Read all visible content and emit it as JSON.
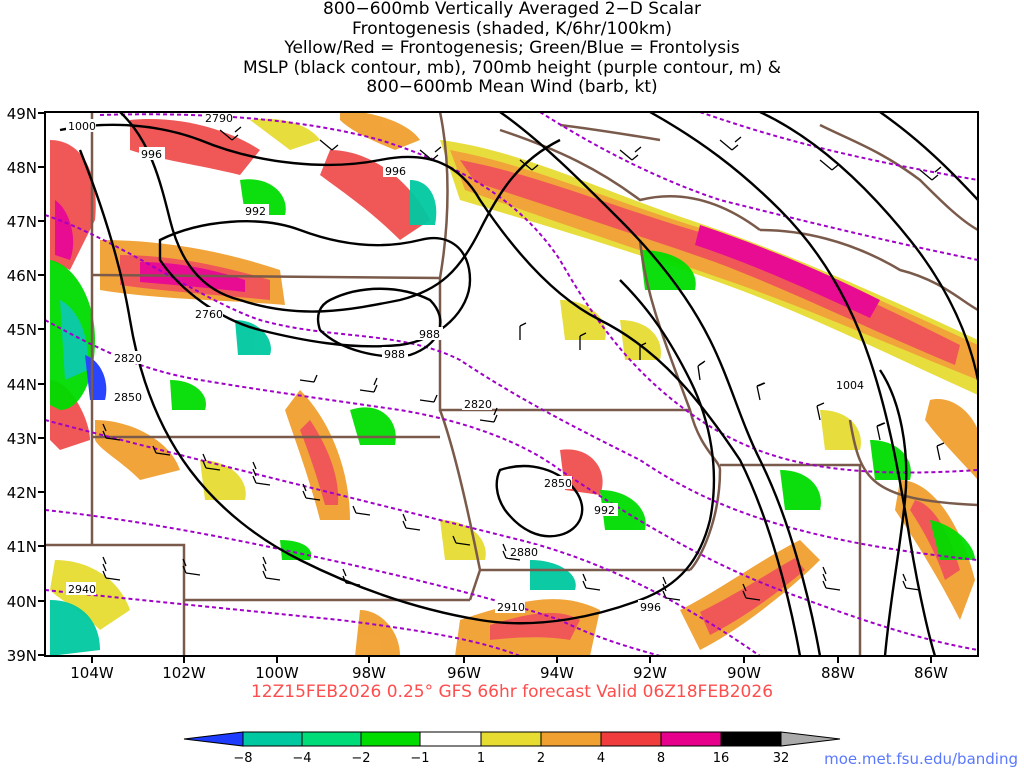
{
  "title_lines": [
    "800−600mb Vertically Averaged 2−D Scalar",
    "Frontogenesis (shaded, K/6hr/100km)",
    "Yellow/Red = Frontogenesis;  Green/Blue = Frontolysis",
    "MSLP (black contour, mb), 700mb height (purple contour, m) &",
    "800−600mb Mean Wind (barb, kt)"
  ],
  "subtitle": "12Z15FEB2026 0.25° GFS 66hr forecast Valid 06Z18FEB2026",
  "credit": "moe.met.fsu.edu/banding",
  "map": {
    "lat_labels": [
      "49N",
      "48N",
      "47N",
      "46N",
      "45N",
      "44N",
      "43N",
      "42N",
      "41N",
      "40N",
      "39N"
    ],
    "lon_labels": [
      "104W",
      "102W",
      "100W",
      "98W",
      "96W",
      "94W",
      "92W",
      "90W",
      "88W",
      "86W"
    ],
    "mslp_labels": [
      "1000",
      "996",
      "996",
      "992",
      "988",
      "988",
      "992",
      "996",
      "1004"
    ],
    "height_labels": [
      "2790",
      "2760",
      "2820",
      "2850",
      "2820",
      "2850",
      "2880",
      "2910",
      "2940"
    ]
  },
  "colorbar": {
    "ticks": [
      "−8",
      "−4",
      "−2",
      "−1",
      "1",
      "2",
      "4",
      "8",
      "16",
      "32"
    ],
    "colors": [
      "#1e3cff",
      "#00c8a0",
      "#00dc78",
      "#00dc00",
      "#ffffff",
      "#e6dc32",
      "#f0a030",
      "#f03c3c",
      "#e6008c",
      "#000000",
      "#aaaaaa"
    ]
  },
  "colors": {
    "frontogenesis_weak": "#e6dc32",
    "frontogenesis_mod": "#f0a030",
    "frontogenesis_strong": "#f05050",
    "frontogenesis_max": "#e6008c",
    "frontolysis_weak": "#00dc00",
    "frontolysis_mod": "#00c8a0",
    "frontolysis_strong": "#1e3cff",
    "mslp_contour": "#000000",
    "height_contour": "#a000c8",
    "borders": "#7a5a4a"
  }
}
